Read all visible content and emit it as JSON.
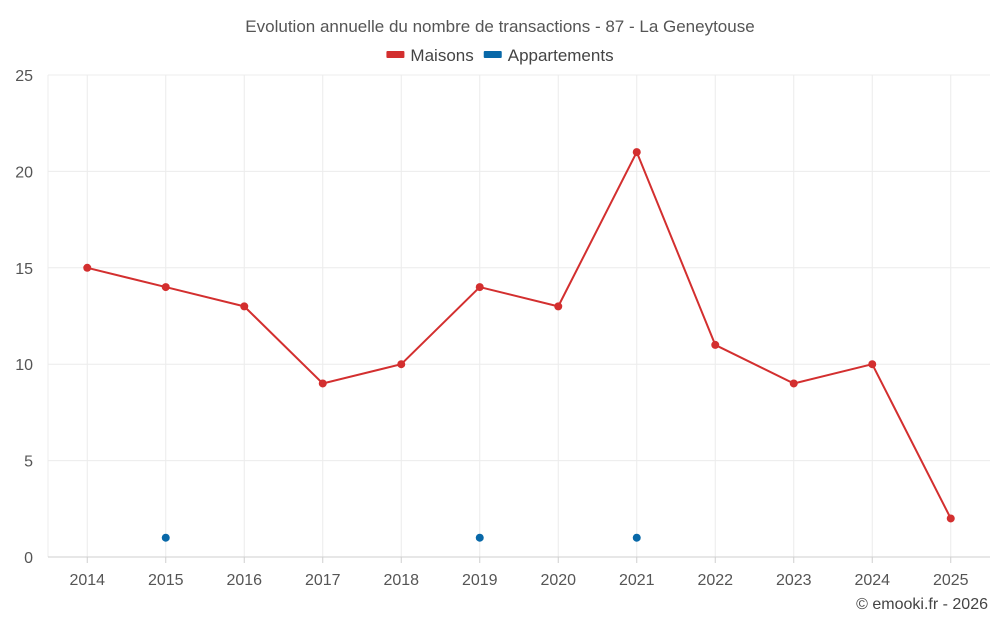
{
  "chart_data": {
    "type": "line",
    "title": "Evolution annuelle du nombre de transactions - 87 - La Geneytouse",
    "categories": [
      "2014",
      "2015",
      "2016",
      "2017",
      "2018",
      "2019",
      "2020",
      "2021",
      "2022",
      "2023",
      "2024",
      "2025"
    ],
    "ylim": [
      0,
      25
    ],
    "yticks": [
      0,
      5,
      10,
      15,
      20,
      25
    ],
    "xlabel": "",
    "ylabel": "",
    "grid": true,
    "legend_position": "top-center",
    "series": [
      {
        "name": "Maisons",
        "color": "#d32f2f",
        "values": [
          15,
          14,
          13,
          9,
          10,
          14,
          13,
          21,
          11,
          9,
          10,
          2
        ]
      },
      {
        "name": "Appartements",
        "color": "#0868a8",
        "values": [
          null,
          1,
          null,
          null,
          null,
          1,
          null,
          1,
          null,
          null,
          null,
          null
        ]
      }
    ]
  },
  "credit": "© emooki.fr - 2026"
}
